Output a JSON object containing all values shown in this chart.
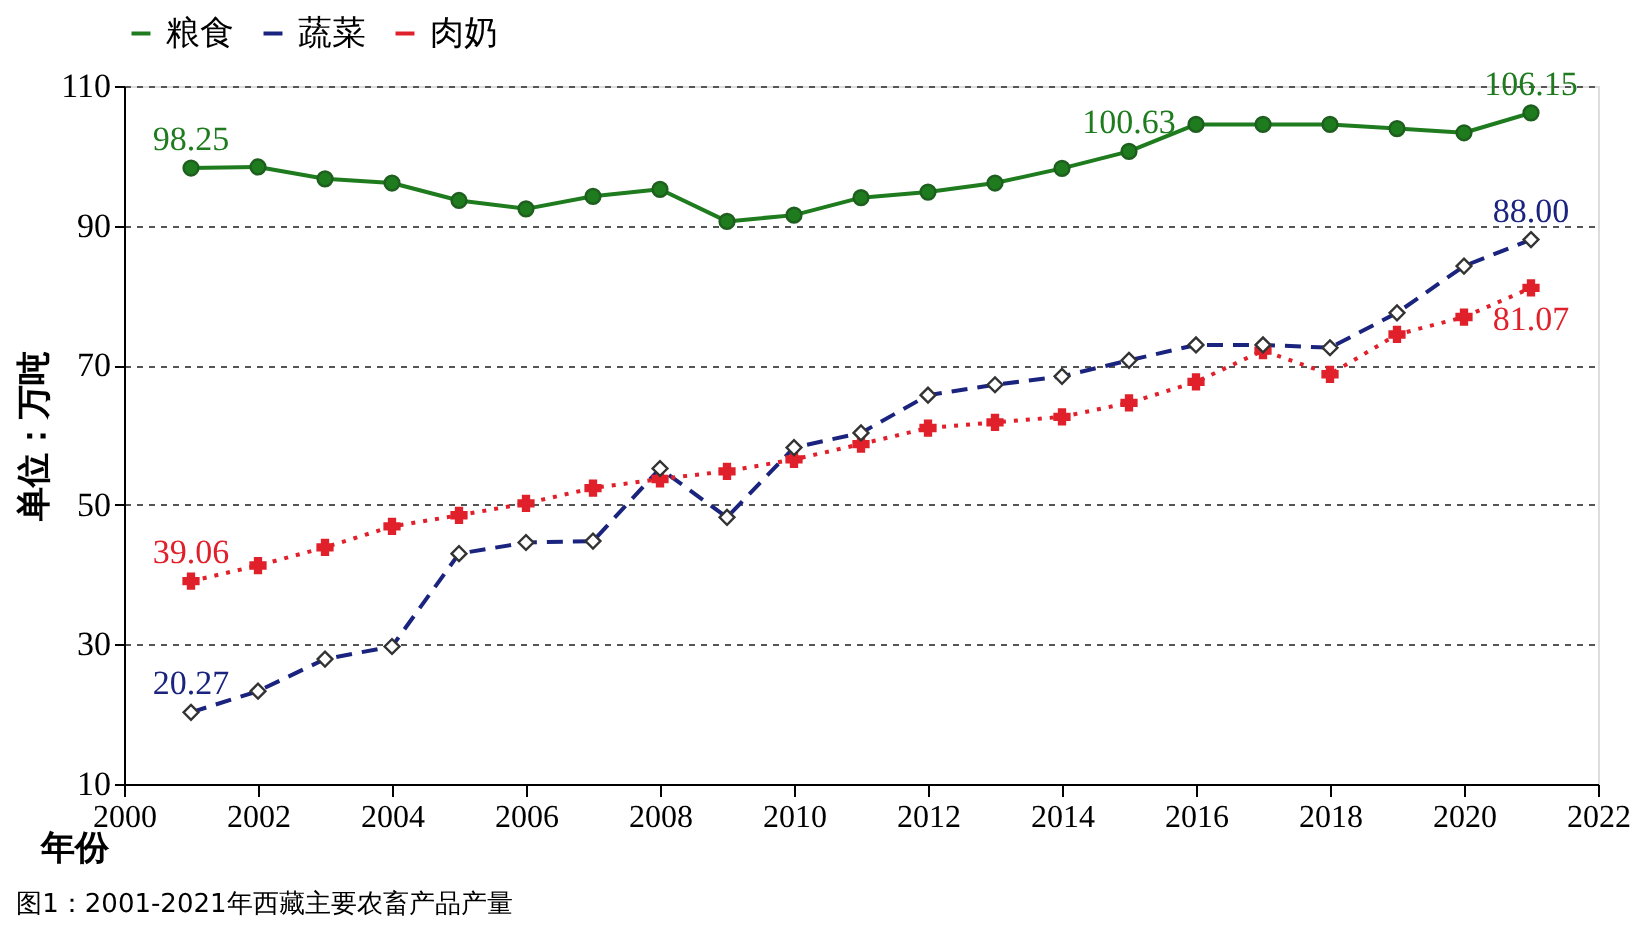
{
  "chart_data": {
    "type": "line",
    "x": [
      2001,
      2002,
      2003,
      2004,
      2005,
      2006,
      2007,
      2008,
      2009,
      2010,
      2011,
      2012,
      2013,
      2014,
      2015,
      2016,
      2017,
      2018,
      2019,
      2020,
      2021
    ],
    "series": [
      {
        "name": "粮食",
        "color": "#1e7b1e",
        "marker": "circle",
        "line_style": "solid",
        "values": [
          98.25,
          98.4,
          96.7,
          96.1,
          93.6,
          92.4,
          94.2,
          95.2,
          90.6,
          91.5,
          94.0,
          94.8,
          96.1,
          98.2,
          100.63,
          104.5,
          104.5,
          104.5,
          103.9,
          103.3,
          106.15
        ],
        "value_labels": [
          "98.25",
          null,
          null,
          null,
          null,
          null,
          null,
          null,
          null,
          null,
          null,
          null,
          null,
          null,
          "100.63",
          null,
          null,
          null,
          null,
          null,
          "106.15"
        ]
      },
      {
        "name": "蔬菜",
        "color": "#1a237e",
        "marker": "diamond",
        "line_style": "dashed",
        "values": [
          20.27,
          23.3,
          27.9,
          29.7,
          43.0,
          44.6,
          44.8,
          55.2,
          48.2,
          58.2,
          60.3,
          65.7,
          67.2,
          68.4,
          70.7,
          72.9,
          72.9,
          72.5,
          77.5,
          84.2,
          88.0
        ],
        "value_labels": [
          "20.27",
          null,
          null,
          null,
          null,
          null,
          null,
          null,
          null,
          null,
          null,
          null,
          null,
          null,
          null,
          null,
          null,
          null,
          null,
          null,
          "88.00"
        ]
      },
      {
        "name": "肉奶",
        "color": "#e0202a",
        "marker": "cross",
        "line_style": "dotted",
        "values": [
          39.06,
          41.3,
          43.9,
          46.9,
          48.5,
          50.2,
          52.4,
          53.7,
          54.8,
          56.5,
          58.7,
          61.0,
          61.8,
          62.6,
          64.6,
          67.6,
          72.1,
          68.7,
          74.4,
          76.9,
          81.07
        ],
        "value_labels": [
          "39.06",
          null,
          null,
          null,
          null,
          null,
          null,
          null,
          null,
          null,
          null,
          null,
          null,
          null,
          null,
          null,
          null,
          null,
          null,
          null,
          "81.07"
        ]
      }
    ],
    "xlabel": "年份",
    "ylabel": "单位：万吨",
    "xlim": [
      2000,
      2022
    ],
    "xticks": [
      2000,
      2002,
      2004,
      2006,
      2008,
      2010,
      2012,
      2014,
      2016,
      2018,
      2020,
      2022
    ],
    "ylim": [
      10,
      110
    ],
    "yticks": [
      10,
      30,
      50,
      70,
      90,
      110
    ],
    "grid": "y",
    "legend": "top",
    "annotations": [
      "图1：2001-2021年西藏主要农畜产品产量"
    ]
  }
}
